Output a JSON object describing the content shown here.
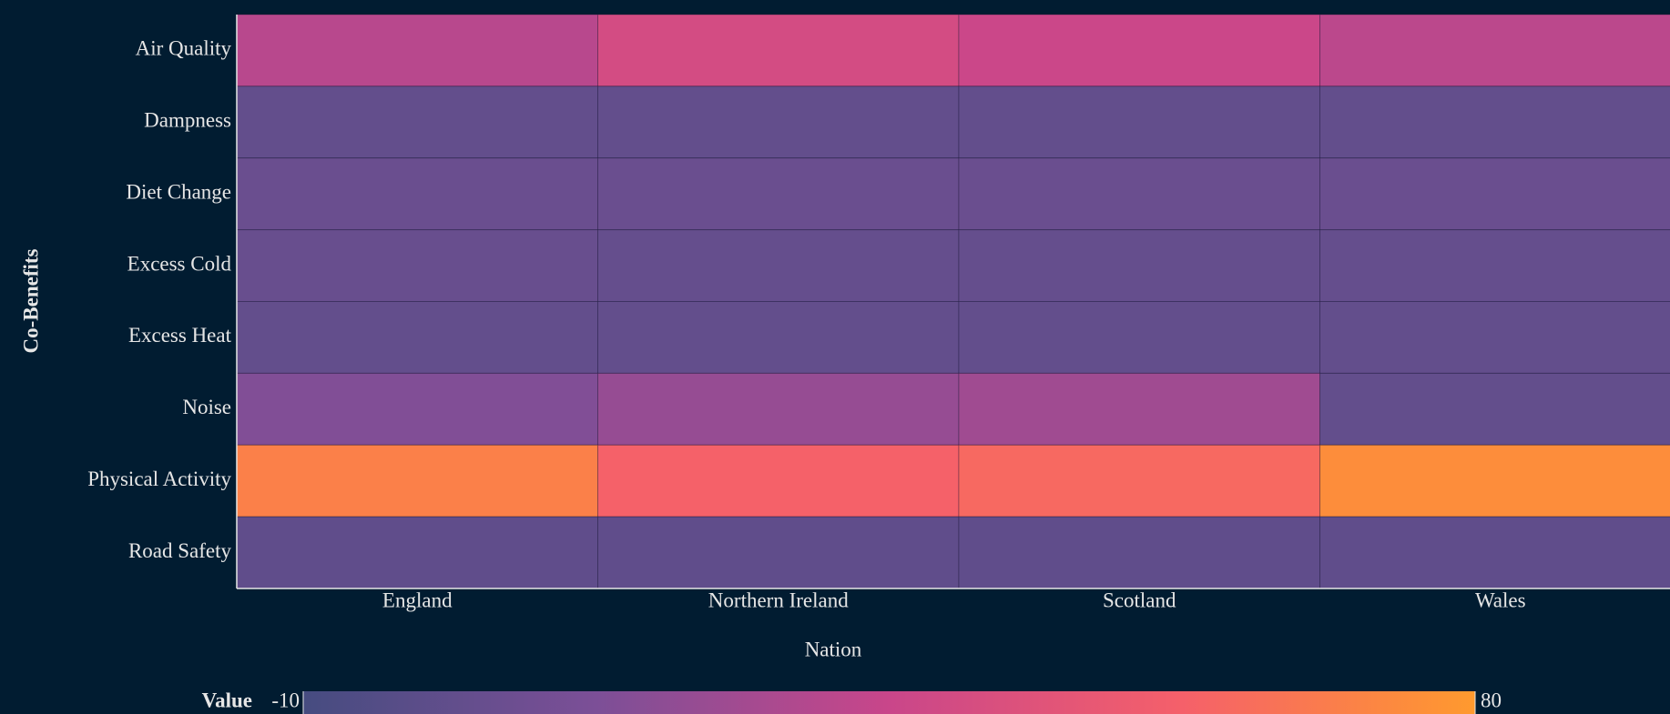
{
  "chart_data": {
    "type": "heatmap",
    "x_label": "Nation",
    "y_label": "Co-Benefits",
    "categories": [
      "England",
      "Northern Ireland",
      "Scotland",
      "Wales"
    ],
    "rows": [
      "Air Quality",
      "Dampness",
      "Diet Change",
      "Excess Cold",
      "Excess Heat",
      "Noise",
      "Physical Activity",
      "Road Safety"
    ],
    "z": [
      [
        30,
        40,
        36,
        31
      ],
      [
        2,
        2,
        2,
        2
      ],
      [
        5,
        5,
        5,
        5
      ],
      [
        4,
        3,
        3,
        3
      ],
      [
        2,
        2,
        2,
        2
      ],
      [
        14,
        20,
        23,
        2
      ],
      [
        70,
        58,
        61,
        75
      ],
      [
        1,
        1,
        1,
        1
      ]
    ],
    "colorbar_title": "Value",
    "zlim": [
      -10,
      80
    ],
    "zticks": [
      -10,
      80
    ],
    "colorscale": [
      "#464c80",
      "#7c4f97",
      "#c9468a",
      "#f5606a",
      "#ff9a2e"
    ]
  }
}
